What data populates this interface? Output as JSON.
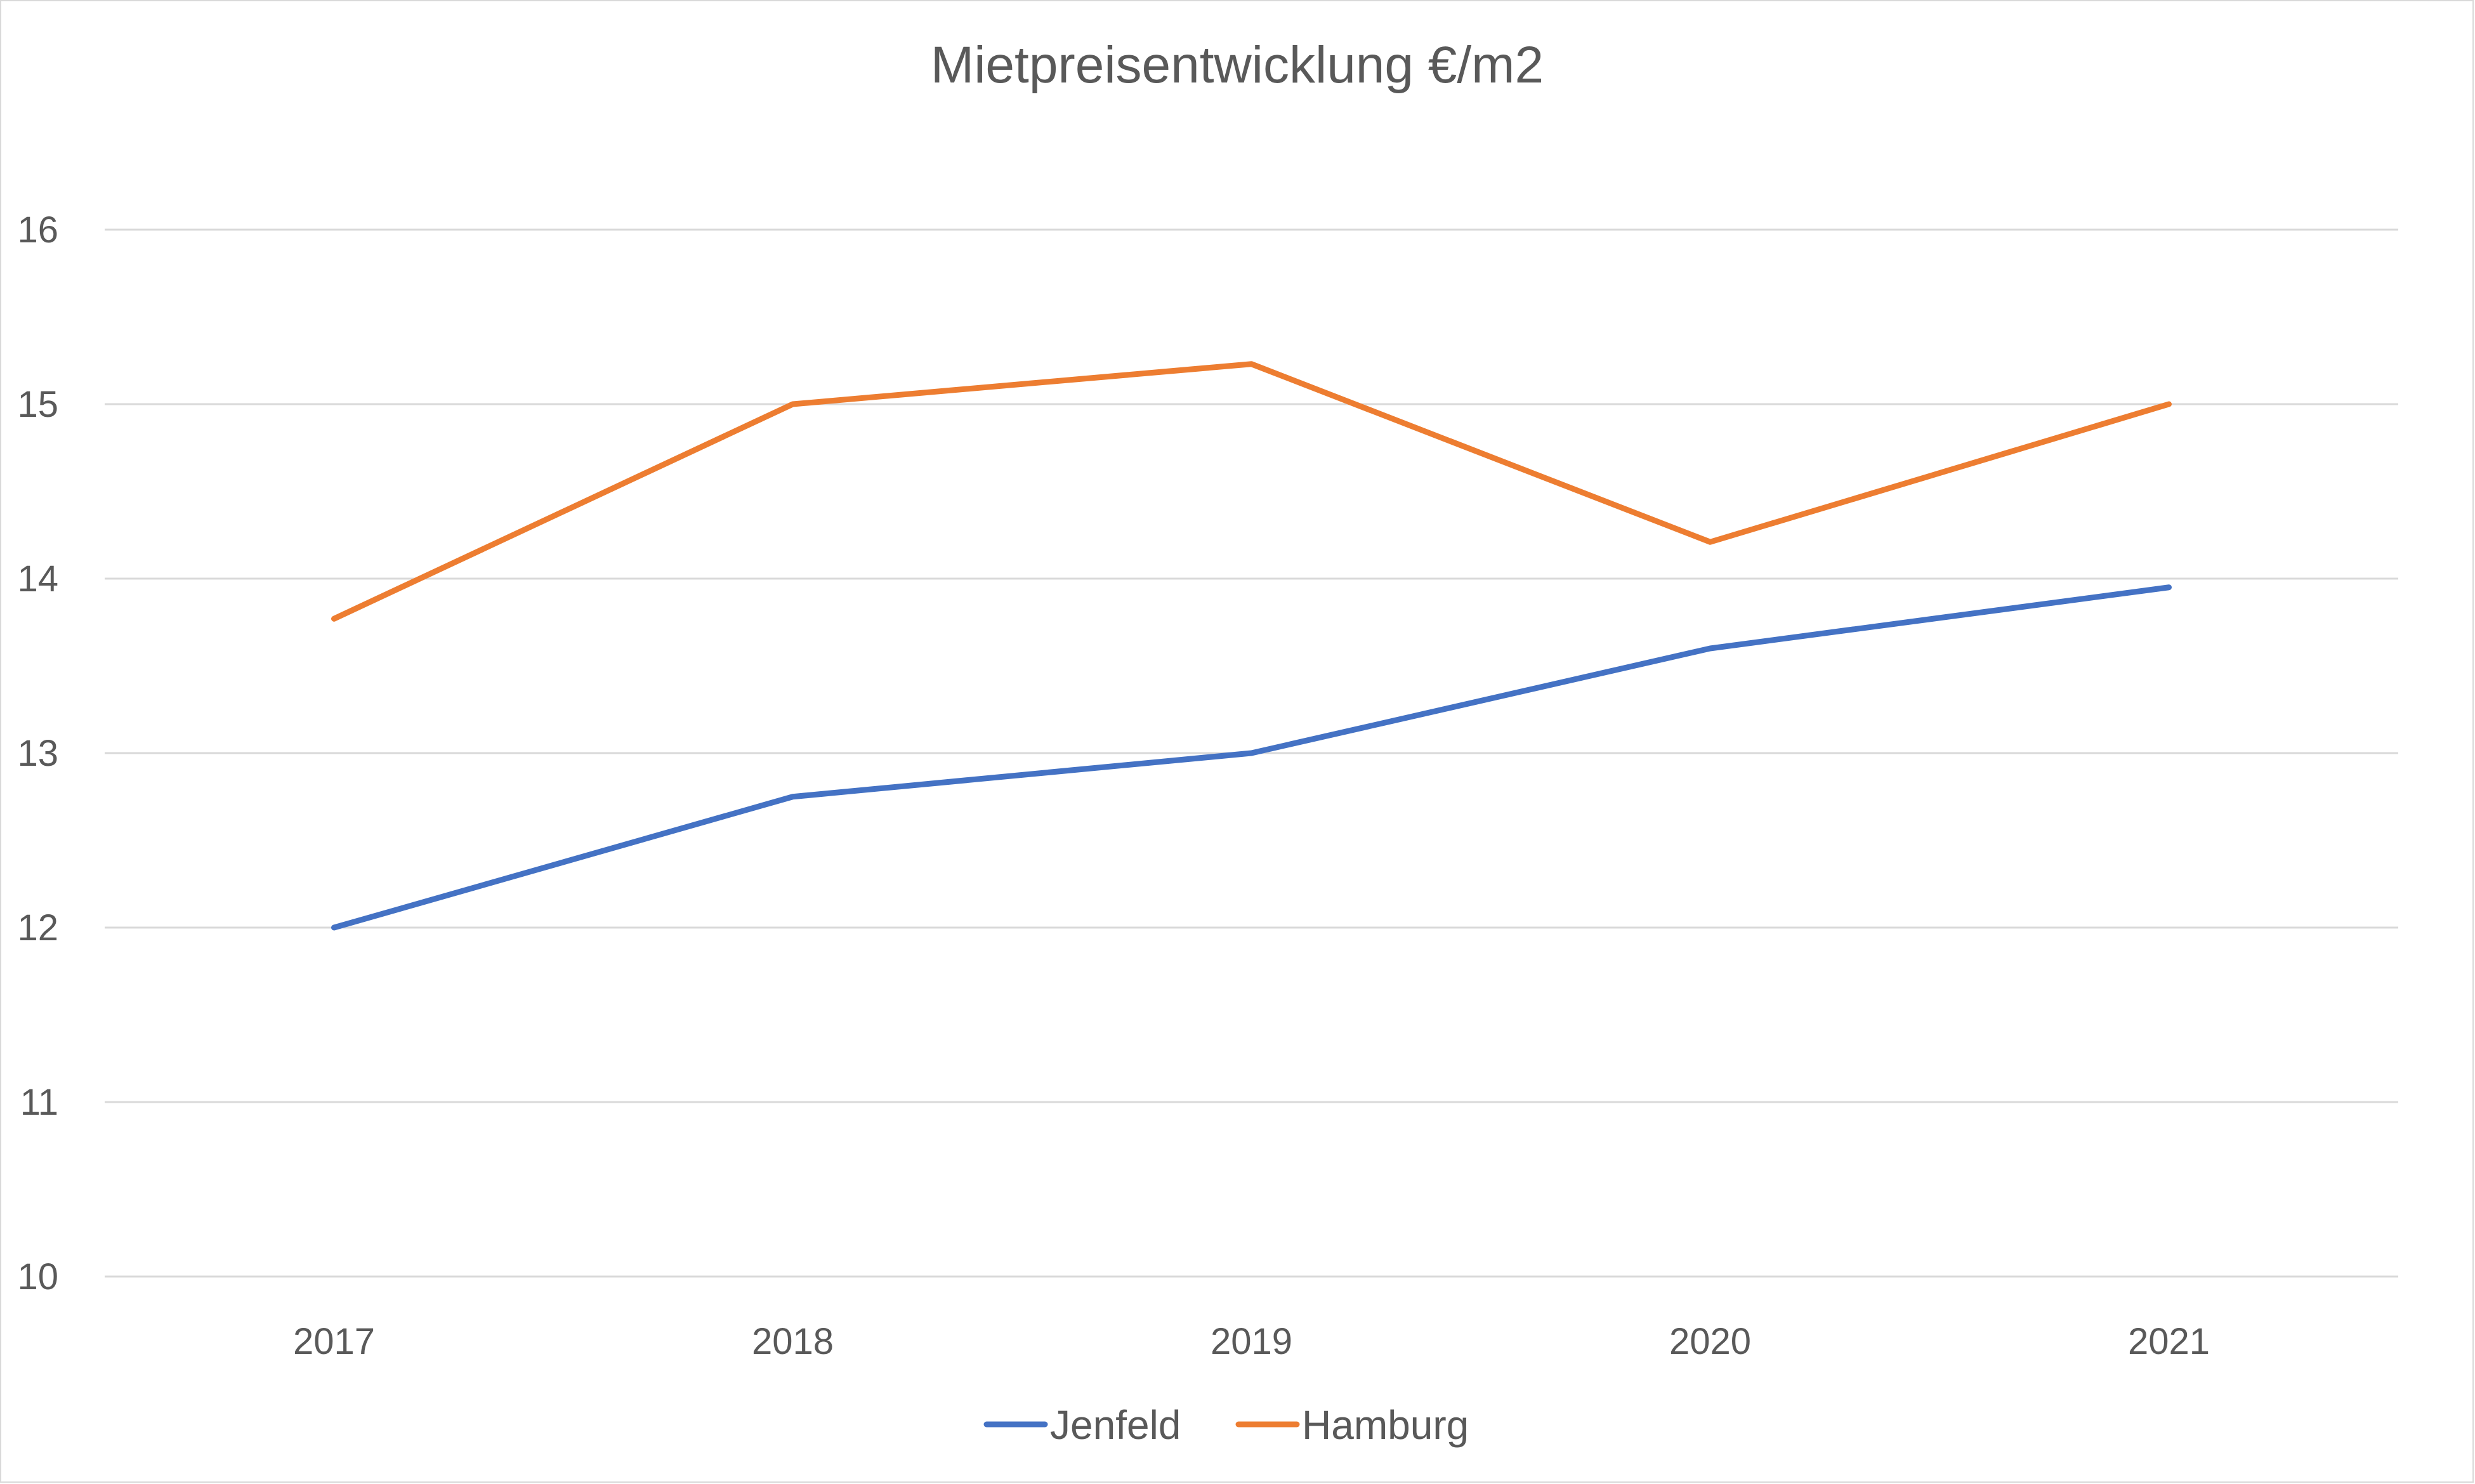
{
  "chart_data": {
    "type": "line",
    "title": "Mietpreisentwicklung  €/m2",
    "xlabel": "",
    "ylabel": "",
    "categories": [
      "2017",
      "2018",
      "2019",
      "2020",
      "2021"
    ],
    "ylim": [
      10,
      16
    ],
    "yticks": [
      10,
      11,
      12,
      13,
      14,
      15,
      16
    ],
    "grid": true,
    "legend_position": "bottom",
    "series": [
      {
        "name": "Jenfeld",
        "color": "#4472c4",
        "values": [
          12.0,
          12.75,
          13.0,
          13.6,
          13.95
        ]
      },
      {
        "name": "Hamburg",
        "color": "#ed7d31",
        "values": [
          13.77,
          15.0,
          15.23,
          14.21,
          15.0
        ]
      }
    ]
  }
}
